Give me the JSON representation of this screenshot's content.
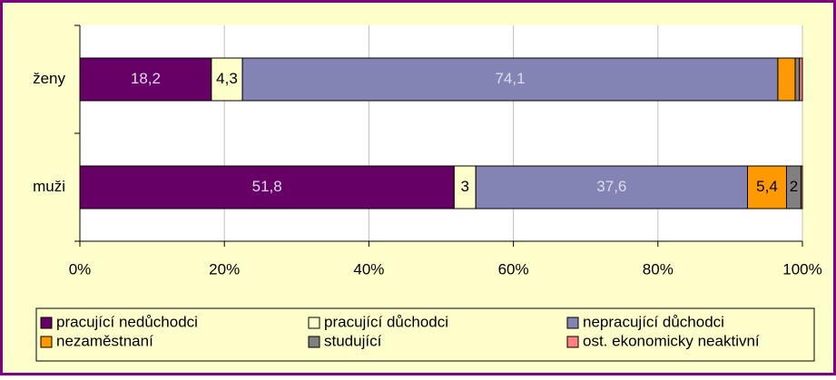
{
  "chart_data": {
    "type": "stacked_bar_horizontal_percent",
    "categories": [
      "ženy",
      "muži"
    ],
    "series": [
      {
        "name": "pracující nedůchodci",
        "color": "#660066",
        "values": [
          18.2,
          51.8
        ],
        "value_labels": [
          "18,2",
          "51,8"
        ]
      },
      {
        "name": "pracující důchodci",
        "color": "#ffffcc",
        "values": [
          4.3,
          3
        ],
        "value_labels": [
          "4,3",
          "3"
        ]
      },
      {
        "name": "nepracující důchodci",
        "color": "#8484b4",
        "values": [
          74.1,
          37.6
        ],
        "value_labels": [
          "74,1",
          "37,6"
        ]
      },
      {
        "name": "nezaměstnaní",
        "color": "#ff9900",
        "values": [
          2.4,
          5.4
        ],
        "value_labels": [
          null,
          "5,4"
        ]
      },
      {
        "name": "studující",
        "color": "#808080",
        "values": [
          0.6,
          2
        ],
        "value_labels": [
          null,
          "2"
        ]
      },
      {
        "name": "ost. ekonomicky neaktivní",
        "color": "#ff8080",
        "values": [
          0.4,
          0.2
        ],
        "value_labels": [
          null,
          null
        ]
      }
    ],
    "xlim": [
      0,
      100
    ],
    "xticks": [
      {
        "value": 0,
        "label": "0%"
      },
      {
        "value": 20,
        "label": "20%"
      },
      {
        "value": 40,
        "label": "40%"
      },
      {
        "value": 60,
        "label": "60%"
      },
      {
        "value": 80,
        "label": "80%"
      },
      {
        "value": 100,
        "label": "100%"
      }
    ],
    "grid": true
  }
}
